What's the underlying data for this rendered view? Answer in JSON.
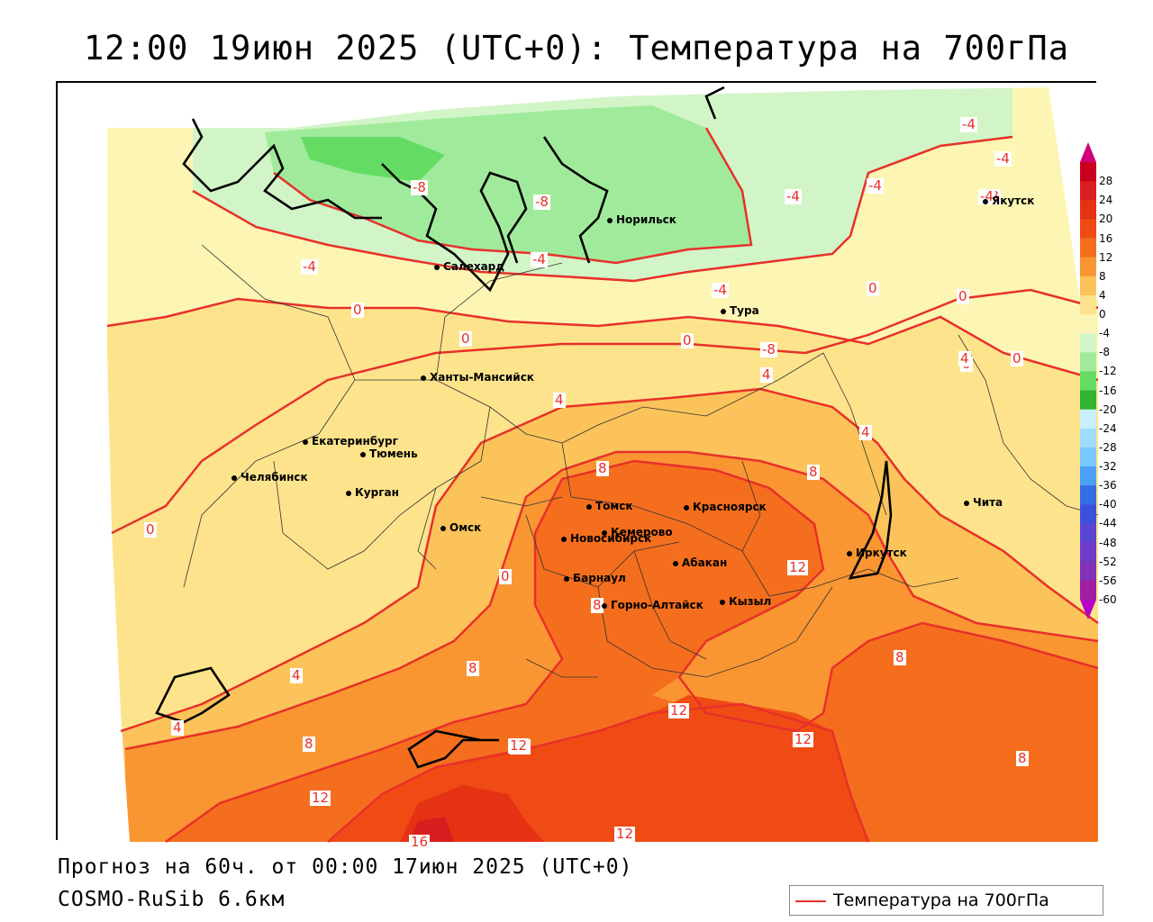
{
  "title": "12:00 19июн 2025 (UTC+0): Температура на 700гПа",
  "footer": {
    "forecast": "Прогноз на 60ч. от 00:00 17июн 2025 (UTC+0)",
    "model": "COSMO-RuSib 6.6км"
  },
  "legend": {
    "label": "Температура на 700гПа",
    "line_color": "#e8302a"
  },
  "colorbar": {
    "ticks": [
      "28",
      "24",
      "20",
      "16",
      "12",
      "8",
      "4",
      "0",
      "-4",
      "-8",
      "-12",
      "-16",
      "-20",
      "-24",
      "-28",
      "-32",
      "-36",
      "-40",
      "-44",
      "-48",
      "-52",
      "-56",
      "-60"
    ],
    "colors": [
      "#c8001e",
      "#d81e1e",
      "#e63214",
      "#f04b14",
      "#f56e1e",
      "#fa9632",
      "#fbc35a",
      "#fde48c",
      "#fdf5b4",
      "#d2f5c8",
      "#a0eb9b",
      "#64dc64",
      "#32b432",
      "#c8f0ff",
      "#a0dcff",
      "#78c8ff",
      "#4ba0f5",
      "#326ee6",
      "#3c50dc",
      "#5a46d2",
      "#6e3cc8",
      "#8232b4",
      "#a01ea0"
    ],
    "top_color": "#d0007a",
    "bottom_color": "#b400c8"
  },
  "cities": [
    {
      "name": "Норильск"
    },
    {
      "name": "Якутск"
    },
    {
      "name": "Салехард"
    },
    {
      "name": "Тура"
    },
    {
      "name": "Ханты-Мансийск"
    },
    {
      "name": "Екатеринбург"
    },
    {
      "name": "Тюмень"
    },
    {
      "name": "Челябинск"
    },
    {
      "name": "Курган"
    },
    {
      "name": "Омск"
    },
    {
      "name": "Новосибирск"
    },
    {
      "name": "Томск"
    },
    {
      "name": "Кемерово"
    },
    {
      "name": "Красноярск"
    },
    {
      "name": "Барнаул"
    },
    {
      "name": "Абакан"
    },
    {
      "name": "Горно-Алтайск"
    },
    {
      "name": "Кызыл"
    },
    {
      "name": "Иркутск"
    },
    {
      "name": "Чита"
    }
  ],
  "contour_labels": [
    "-4",
    "-8",
    "-8",
    "-4",
    "-4",
    "-8",
    "-4",
    "-4",
    "-4",
    "-8",
    "-4",
    "0",
    "0",
    "0",
    "0",
    "4",
    "0",
    "0",
    "-4",
    "0",
    "4",
    "4",
    "8",
    "8",
    "8",
    "12",
    "8",
    "0",
    "4",
    "4",
    "8",
    "12",
    "12",
    "12",
    "8",
    "4",
    "8",
    "12",
    "12",
    "12",
    "0",
    "16"
  ]
}
